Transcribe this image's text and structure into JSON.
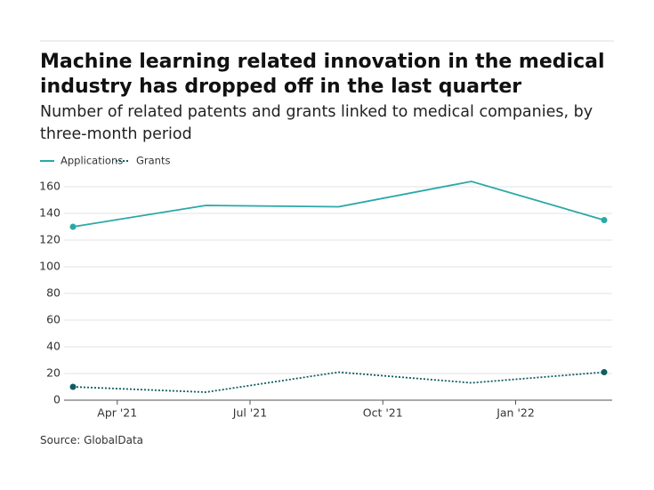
{
  "chart_data": {
    "type": "line",
    "title": "Machine learning related innovation in the medical industry has dropped off in the last quarter",
    "subtitle": "Number of related patents and grants linked to medical companies, by three-month period",
    "source": "Source: GlobalData",
    "x": [
      "2021-03",
      "2021-06",
      "2021-09",
      "2021-12",
      "2022-03"
    ],
    "xticks": [
      {
        "value": "2021-04",
        "label": "Apr '21"
      },
      {
        "value": "2021-07",
        "label": "Jul '21"
      },
      {
        "value": "2021-10",
        "label": "Oct '21"
      },
      {
        "value": "2022-01",
        "label": "Jan '22"
      }
    ],
    "series": [
      {
        "name": "Applications",
        "color": "#2aa8a8",
        "dash": "solid",
        "values": [
          130,
          146,
          145,
          164,
          135
        ]
      },
      {
        "name": "Grants",
        "color": "#0e5d62",
        "dash": "dotted",
        "values": [
          10,
          6,
          21,
          13,
          21
        ]
      }
    ],
    "ylim": [
      0,
      160
    ],
    "yticks": [
      0,
      20,
      40,
      60,
      80,
      100,
      120,
      140,
      160
    ],
    "grid": true
  }
}
